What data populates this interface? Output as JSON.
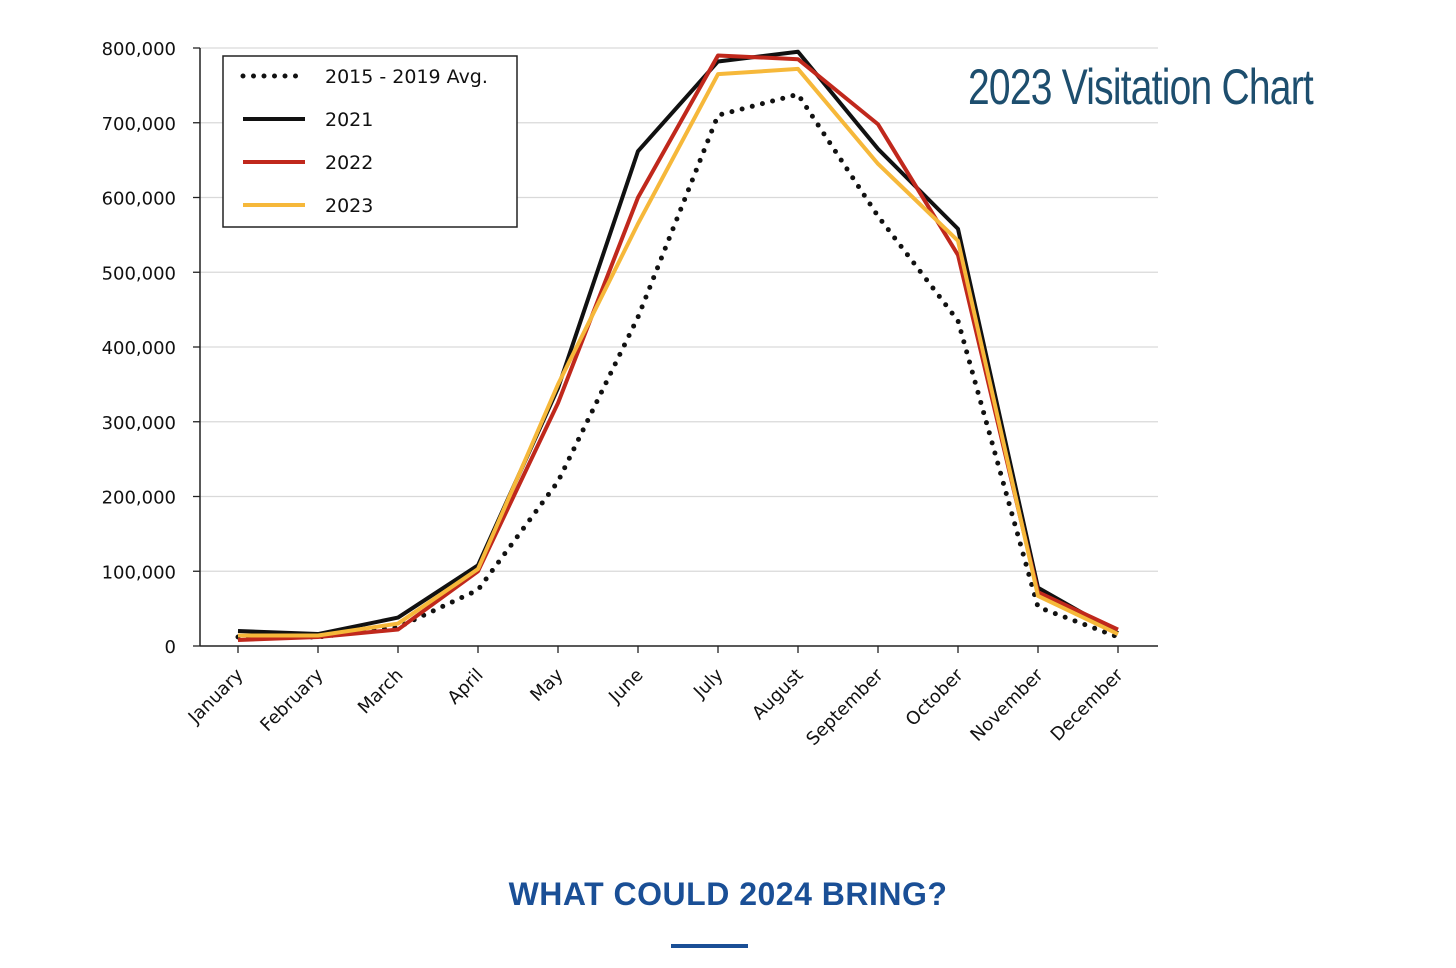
{
  "chart_data": {
    "type": "line",
    "title": "2023 Visitation Chart",
    "xlabel": "",
    "ylabel": "",
    "ylim": [
      0,
      800000
    ],
    "y_ticks": [
      "0",
      "100,000",
      "200,000",
      "300,000",
      "400,000",
      "500,000",
      "600,000",
      "700,000",
      "800,000"
    ],
    "y_tick_values": [
      0,
      100000,
      200000,
      300000,
      400000,
      500000,
      600000,
      700000,
      800000
    ],
    "categories": [
      "January",
      "February",
      "March",
      "April",
      "May",
      "June",
      "July",
      "August",
      "September",
      "October",
      "November",
      "December"
    ],
    "grid": true,
    "legend_position": "top-left",
    "series": [
      {
        "name": "2015 - 2019 Avg.",
        "style": "dotted",
        "color": "#111111",
        "values": [
          12000,
          12000,
          25000,
          75000,
          220000,
          440000,
          710000,
          738000,
          575000,
          435000,
          52000,
          12000
        ]
      },
      {
        "name": "2021",
        "style": "solid",
        "color": "#111111",
        "values": [
          20000,
          16000,
          38000,
          108000,
          345000,
          662000,
          782000,
          795000,
          665000,
          558000,
          78000,
          17000
        ]
      },
      {
        "name": "2022",
        "style": "solid",
        "color": "#c0281c",
        "values": [
          8000,
          12000,
          22000,
          100000,
          325000,
          600000,
          790000,
          785000,
          698000,
          523000,
          72000,
          22000
        ]
      },
      {
        "name": "2023",
        "style": "solid",
        "color": "#f6b83a",
        "values": [
          14000,
          14000,
          30000,
          103000,
          350000,
          565000,
          765000,
          772000,
          645000,
          542000,
          67000,
          16000
        ]
      }
    ]
  },
  "footer": {
    "heading": "WHAT COULD 2024 BRING?"
  }
}
